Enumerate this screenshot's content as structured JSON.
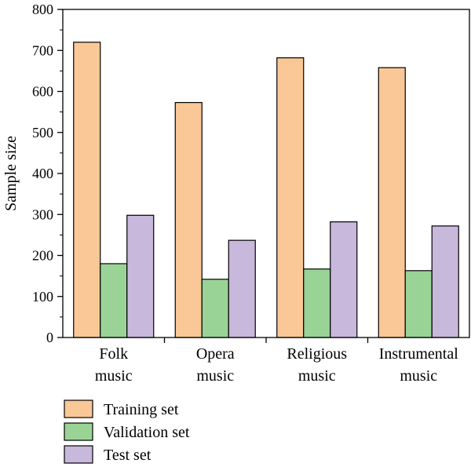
{
  "chart_data": {
    "type": "bar",
    "categories": [
      "Folk music",
      "Opera music",
      "Religious music",
      "Instrumental music"
    ],
    "category_lines": [
      [
        "Folk",
        "music"
      ],
      [
        "Opera",
        "music"
      ],
      [
        "Religious",
        "music"
      ],
      [
        "Instrumental",
        "music"
      ]
    ],
    "series": [
      {
        "name": "Training set",
        "values": [
          720,
          573,
          682,
          658
        ],
        "color": "#F9C896"
      },
      {
        "name": "Validation set",
        "values": [
          180,
          142,
          167,
          163
        ],
        "color": "#99D496"
      },
      {
        "name": "Test set",
        "values": [
          298,
          237,
          282,
          272
        ],
        "color": "#C8B8DC"
      }
    ],
    "title": "",
    "xlabel": "",
    "ylabel": "Sample size",
    "ylim": [
      0,
      800
    ],
    "yticks": [
      0,
      100,
      200,
      300,
      400,
      500,
      600,
      700,
      800
    ],
    "grid": false,
    "legend_position": "bottom-left"
  }
}
